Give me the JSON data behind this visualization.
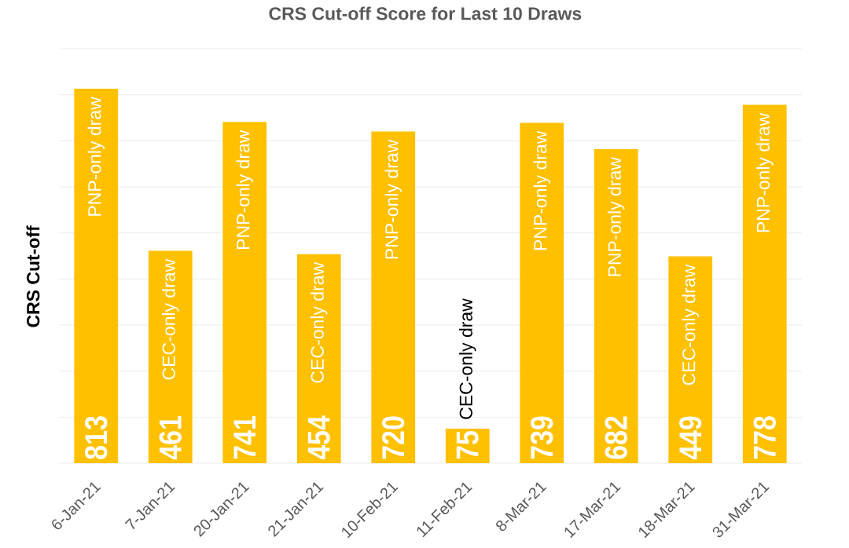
{
  "chart_data": {
    "type": "bar",
    "title": "CRS Cut-off Score for Last 10 Draws",
    "ylabel": "CRS Cut-off",
    "categories": [
      "6-Jan-21",
      "7-Jan-21",
      "20-Jan-21",
      "21-Jan-21",
      "10-Feb-21",
      "11-Feb-21",
      "8-Mar-21",
      "17-Mar-21",
      "18-Mar-21",
      "31-Mar-21"
    ],
    "values": [
      813,
      461,
      741,
      454,
      720,
      75,
      739,
      682,
      449,
      778
    ],
    "color": "#ffc000",
    "ylim": [
      0,
      900
    ],
    "yticks": [
      {
        "value": 0,
        "label": null
      },
      {
        "value": 100,
        "label": null
      },
      {
        "value": 200,
        "label": null
      },
      {
        "value": 300,
        "label": null
      },
      {
        "value": 400,
        "label": null
      },
      {
        "value": 500,
        "label": null
      },
      {
        "value": 600,
        "label": null
      },
      {
        "value": 700,
        "label": null
      },
      {
        "value": 800,
        "label": null
      },
      {
        "value": 900,
        "label": null
      }
    ],
    "grid": "y",
    "data_labels": true,
    "annotations": [
      "PNP-only draw",
      "CEC-only draw",
      "PNP-only draw",
      "CEC-only draw",
      "PNP-only draw",
      "CEC-only draw",
      "PNP-only draw",
      "PNP-only draw",
      "CEC-only draw",
      "PNP-only draw"
    ]
  }
}
